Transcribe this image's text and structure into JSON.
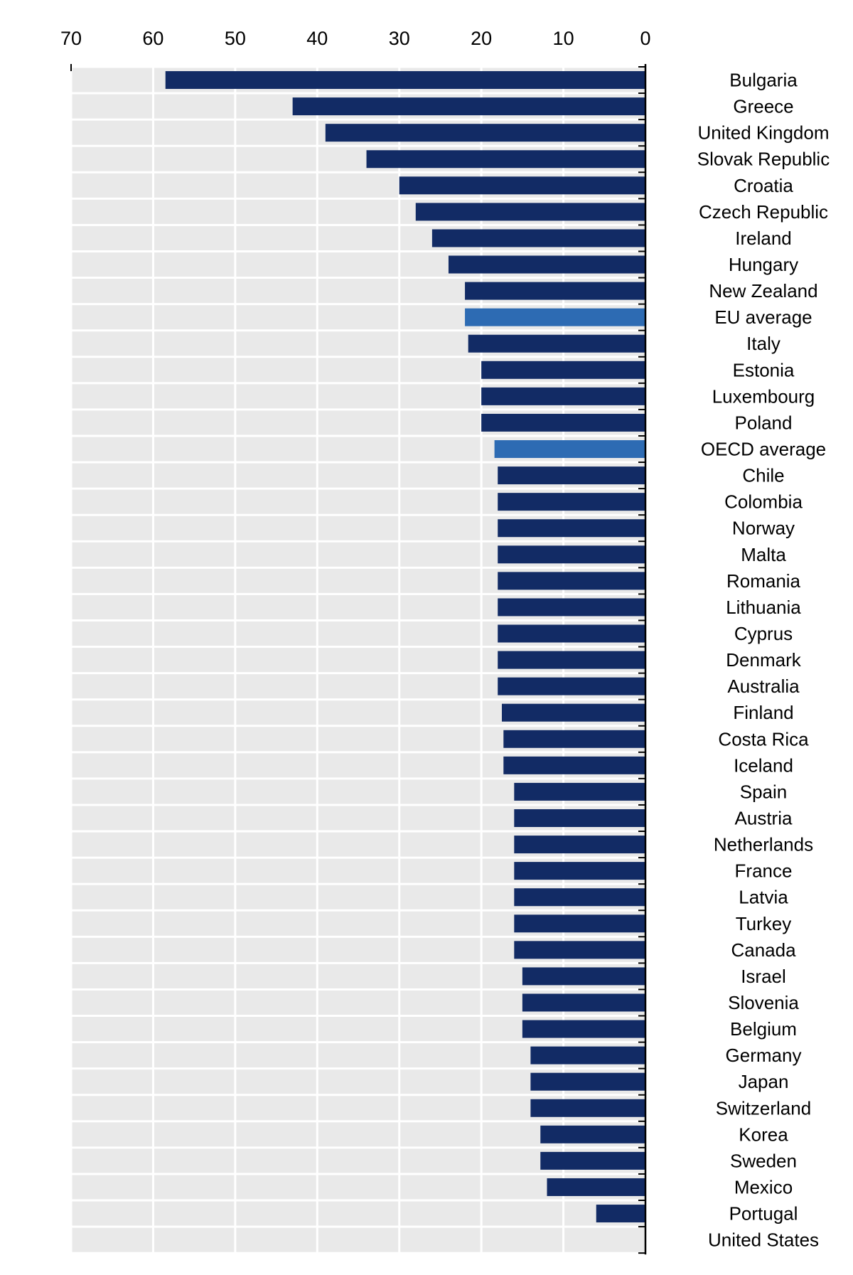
{
  "chart_data": {
    "type": "bar",
    "orientation": "horizontal",
    "x_direction": "reversed",
    "title": "",
    "xlabel": "",
    "ylabel": "",
    "xlim": [
      0,
      70
    ],
    "xticks": [
      70,
      60,
      50,
      40,
      30,
      20,
      10,
      0
    ],
    "grid": true,
    "legend": "none",
    "colors": {
      "bar": "#122b65",
      "highlight": "#2d6bb3",
      "band": "#e9e9e9",
      "grid": "#ffffff",
      "axis": "#000000"
    },
    "highlighted": [
      "EU average",
      "OECD average"
    ],
    "categories": [
      "Bulgaria",
      "Greece",
      "United Kingdom",
      "Slovak Republic",
      "Croatia",
      "Czech Republic",
      "Ireland",
      "Hungary",
      "New Zealand",
      "EU average",
      "Italy",
      "Estonia",
      "Luxembourg",
      "Poland",
      "OECD average",
      "Chile",
      "Colombia",
      "Norway",
      "Malta",
      "Romania",
      "Lithuania",
      "Cyprus",
      "Denmark",
      "Australia",
      "Finland",
      "Costa Rica",
      "Iceland",
      "Spain",
      "Austria",
      "Netherlands",
      "France",
      "Latvia",
      "Turkey",
      "Canada",
      "Israel",
      "Slovenia",
      "Belgium",
      "Germany",
      "Japan",
      "Switzerland",
      "Korea",
      "Sweden",
      "Mexico",
      "Portugal",
      "United States"
    ],
    "values": [
      58.5,
      43,
      39,
      34,
      30,
      28,
      26,
      24,
      22,
      22,
      21.6,
      20,
      20,
      20,
      18.4,
      18,
      18,
      18,
      18,
      18,
      18,
      18,
      18,
      18,
      17.5,
      17.3,
      17.3,
      16,
      16,
      16,
      16,
      16,
      16,
      16,
      15,
      15,
      15,
      14,
      14,
      14,
      12.8,
      12.8,
      12,
      6,
      0
    ]
  }
}
